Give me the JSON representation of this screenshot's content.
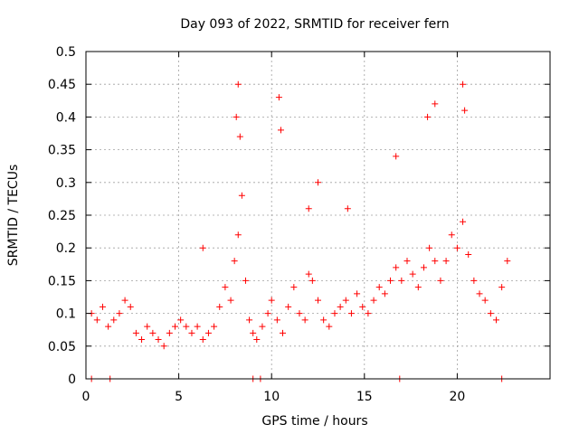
{
  "chart_data": {
    "type": "scatter",
    "title": "Day 093 of 2022, SRMTID for receiver fern",
    "xlabel": "GPS time / hours",
    "ylabel": "SRMTID / TECUs",
    "xlim": [
      0,
      25
    ],
    "ylim": [
      0,
      0.5
    ],
    "x_ticks": [
      0,
      5,
      10,
      15,
      20
    ],
    "x_tick_labels": [
      "0",
      "5",
      "10",
      "15",
      "20"
    ],
    "y_ticks": [
      0,
      0.05,
      0.1,
      0.15,
      0.2,
      0.25,
      0.3,
      0.35,
      0.4,
      0.45,
      0.5
    ],
    "y_tick_labels": [
      "0",
      "0.05",
      "0.1",
      "0.15",
      "0.2",
      "0.25",
      "0.3",
      "0.35",
      "0.4",
      "0.45",
      "0.5"
    ],
    "grid": true,
    "marker": "plus",
    "series_color": "#ff0000",
    "series": [
      {
        "name": "SRMTID",
        "x": [
          0.3,
          0.6,
          0.9,
          1.2,
          1.5,
          1.8,
          2.1,
          2.4,
          2.7,
          3.0,
          3.3,
          3.6,
          3.9,
          4.2,
          4.5,
          4.8,
          5.1,
          5.4,
          5.7,
          6.0,
          6.3,
          6.6,
          6.9,
          7.2,
          7.5,
          7.8,
          8.0,
          8.2,
          8.4,
          8.6,
          8.8,
          9.0,
          9.2,
          9.5,
          9.8,
          10.0,
          10.3,
          10.6,
          10.9,
          11.2,
          11.5,
          11.8,
          12.0,
          12.2,
          12.5,
          12.8,
          13.1,
          13.4,
          13.7,
          14.0,
          14.3,
          14.6,
          14.9,
          15.2,
          15.5,
          15.8,
          16.1,
          16.4,
          16.7,
          17.0,
          17.3,
          17.6,
          17.9,
          18.2,
          18.5,
          18.8,
          19.1,
          19.4,
          19.7,
          20.0,
          20.3,
          20.6,
          20.9,
          21.2,
          21.5,
          21.8,
          22.1,
          22.4,
          22.7,
          8.1,
          8.2,
          8.3,
          10.4,
          10.5,
          12.5,
          16.7,
          18.4,
          18.8,
          20.3,
          20.4,
          0.3,
          1.3,
          9.0,
          9.4,
          16.9,
          22.4,
          6.3,
          12.0,
          14.1
        ],
        "y": [
          0.1,
          0.09,
          0.11,
          0.08,
          0.09,
          0.1,
          0.12,
          0.11,
          0.07,
          0.06,
          0.08,
          0.07,
          0.06,
          0.05,
          0.07,
          0.08,
          0.09,
          0.08,
          0.07,
          0.08,
          0.06,
          0.07,
          0.08,
          0.11,
          0.14,
          0.12,
          0.18,
          0.22,
          0.28,
          0.15,
          0.09,
          0.07,
          0.06,
          0.08,
          0.1,
          0.12,
          0.09,
          0.07,
          0.11,
          0.14,
          0.1,
          0.09,
          0.16,
          0.15,
          0.12,
          0.09,
          0.08,
          0.1,
          0.11,
          0.12,
          0.1,
          0.13,
          0.11,
          0.1,
          0.12,
          0.14,
          0.13,
          0.15,
          0.17,
          0.15,
          0.18,
          0.16,
          0.14,
          0.17,
          0.2,
          0.18,
          0.15,
          0.18,
          0.22,
          0.2,
          0.24,
          0.19,
          0.15,
          0.13,
          0.12,
          0.1,
          0.09,
          0.14,
          0.18,
          0.4,
          0.45,
          0.37,
          0.43,
          0.38,
          0.3,
          0.34,
          0.4,
          0.42,
          0.45,
          0.41,
          0.0,
          0.0,
          0.0,
          0.0,
          0.0,
          0.0,
          0.2,
          0.26,
          0.26
        ]
      }
    ]
  }
}
